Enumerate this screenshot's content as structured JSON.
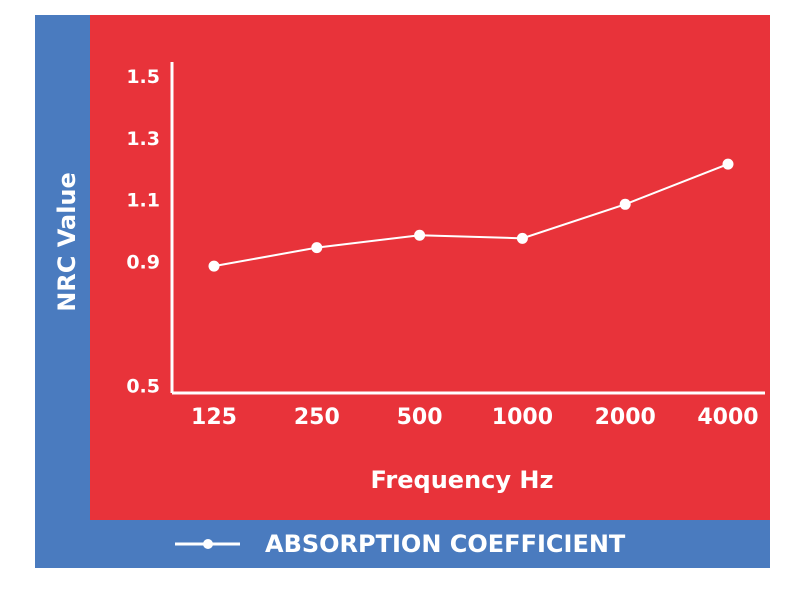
{
  "chart_data": {
    "type": "line",
    "y_label": "NRC  Value",
    "x_label": "Frequency Hz",
    "categories": [
      "125",
      "250",
      "500",
      "1000",
      "2000",
      "4000"
    ],
    "series": [
      {
        "name": "ABSORPTION COEFFICIENT",
        "color": "#ffffff",
        "values": [
          0.89,
          0.95,
          0.99,
          0.98,
          1.09,
          1.22
        ]
      }
    ],
    "ylim": [
      0.48,
      1.55
    ],
    "yticks": [
      0.5,
      0.9,
      1.1,
      1.3,
      1.5
    ],
    "grid": false
  }
}
